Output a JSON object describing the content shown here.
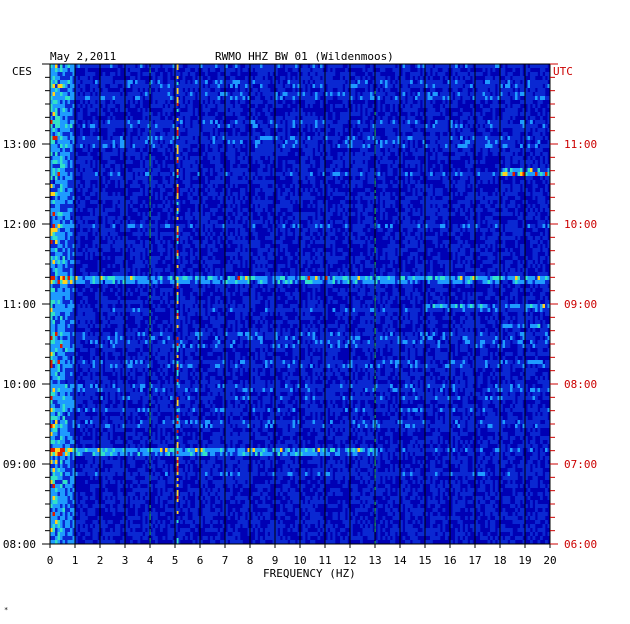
{
  "header": {
    "date": "May 2,2011",
    "station": "RWMO HHZ BW 01 (Wildenmoos)",
    "left_zone": "CES",
    "right_zone": "UTC"
  },
  "footer": {
    "mark": "*"
  },
  "colors": {
    "background": "#0000b4",
    "low": "#0a28d2",
    "mid": "#1e9bff",
    "high": "#32e1c8",
    "hot": "#ffd21e",
    "max": "#dc1e00",
    "left_labels": "#000000",
    "right_labels": "#cc0000"
  },
  "chart_data": {
    "type": "heatmap",
    "title": "RWMO HHZ BW 01 (Wildenmoos)",
    "subtitle": "May 2,2011",
    "xlabel": "FREQUENCY (HZ)",
    "ylabel_left": "CES",
    "ylabel_right": "UTC",
    "xlim": [
      0,
      20
    ],
    "ylim_left_hours": [
      8,
      14
    ],
    "x_ticks": [
      "0",
      "1",
      "2",
      "3",
      "4",
      "5",
      "6",
      "7",
      "8",
      "9",
      "10",
      "11",
      "12",
      "13",
      "14",
      "15",
      "16",
      "17",
      "18",
      "19",
      "20"
    ],
    "y_ticks_left": [
      "13:00",
      "12:00",
      "11:00",
      "10:00",
      "09:00",
      "08:00"
    ],
    "y_ticks_right": [
      "11:00",
      "10:00",
      "09:00",
      "08:00",
      "07:00",
      "06:00"
    ],
    "grid": "vertical lines at each 1 Hz",
    "features": [
      {
        "label": "low-frequency energy",
        "x_range": [
          0,
          1
        ],
        "intensity": "high"
      },
      {
        "label": "4 Hz line",
        "x": 4,
        "intensity": "medium"
      },
      {
        "label": "5.1 Hz line",
        "x": 5.1,
        "intensity": "high"
      },
      {
        "label": "13 Hz line",
        "x": 13,
        "intensity": "medium"
      },
      {
        "label": "event band",
        "time_left": "12:40",
        "x_range": [
          18,
          20
        ],
        "intensity": "high"
      },
      {
        "label": "event band",
        "time_left": "11:20",
        "x_range": [
          0,
          20
        ],
        "intensity": "medium"
      },
      {
        "label": "event band",
        "time_left": "11:00",
        "x_range": [
          15,
          20
        ],
        "intensity": "medium"
      },
      {
        "label": "event band",
        "time_left": "10:45",
        "x_range": [
          18,
          20
        ],
        "intensity": "medium"
      },
      {
        "label": "event band",
        "time_left": "09:10",
        "x_range": [
          0,
          13
        ],
        "intensity": "medium"
      }
    ]
  }
}
